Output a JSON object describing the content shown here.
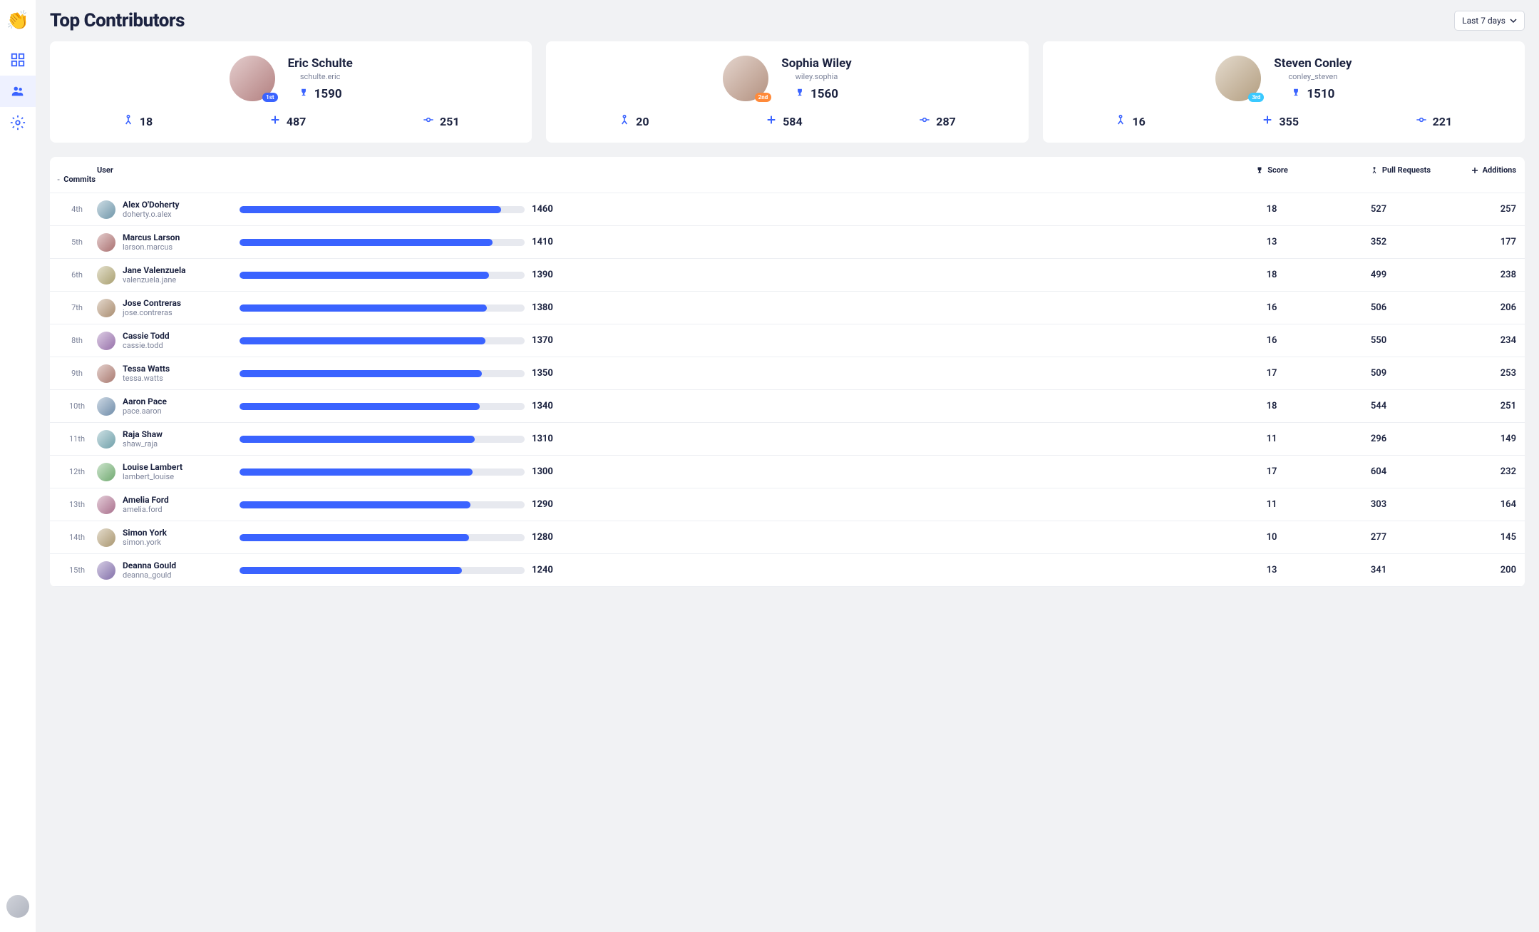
{
  "page": {
    "title": "Top Contributors"
  },
  "dropdown": {
    "label": "Last 7 days"
  },
  "colors": {
    "primary": "#3a63ff",
    "track": "#e7e9ef",
    "badge1": "#3a63ff",
    "badge2": "#ff8a3a",
    "badge3": "#3ac9ff"
  },
  "sidebar": {
    "logo": "👏"
  },
  "score_bar": {
    "max": 1590
  },
  "columns": {
    "user": "User",
    "score": "Score",
    "prs": "Pull Requests",
    "additions": "Additions",
    "commits": "Commits"
  },
  "top3": [
    {
      "rank": "1st",
      "name": "Eric Schulte",
      "username": "schulte.eric",
      "score": 1590,
      "prs": 18,
      "additions": 487,
      "commits": 251,
      "avatar_hue": 0
    },
    {
      "rank": "2nd",
      "name": "Sophia Wiley",
      "username": "wiley.sophia",
      "score": 1560,
      "prs": 20,
      "additions": 584,
      "commits": 287,
      "avatar_hue": 20
    },
    {
      "rank": "3rd",
      "name": "Steven Conley",
      "username": "conley_steven",
      "score": 1510,
      "prs": 16,
      "additions": 355,
      "commits": 221,
      "avatar_hue": 35
    }
  ],
  "rows": [
    {
      "rank": "4th",
      "name": "Alex O'Doherty",
      "username": "doherty.o.alex",
      "score": 1460,
      "prs": 18,
      "additions": 527,
      "commits": 257,
      "avatar_hue": 200
    },
    {
      "rank": "5th",
      "name": "Marcus Larson",
      "username": "larson.marcus",
      "score": 1410,
      "prs": 13,
      "additions": 352,
      "commits": 177,
      "avatar_hue": 0
    },
    {
      "rank": "6th",
      "name": "Jane Valenzuela",
      "username": "valenzuela.jane",
      "score": 1390,
      "prs": 18,
      "additions": 499,
      "commits": 238,
      "avatar_hue": 50
    },
    {
      "rank": "7th",
      "name": "Jose Contreras",
      "username": "jose.contreras",
      "score": 1380,
      "prs": 16,
      "additions": 506,
      "commits": 206,
      "avatar_hue": 30
    },
    {
      "rank": "8th",
      "name": "Cassie Todd",
      "username": "cassie.todd",
      "score": 1370,
      "prs": 16,
      "additions": 550,
      "commits": 234,
      "avatar_hue": 280
    },
    {
      "rank": "9th",
      "name": "Tessa Watts",
      "username": "tessa.watts",
      "score": 1350,
      "prs": 17,
      "additions": 509,
      "commits": 253,
      "avatar_hue": 10
    },
    {
      "rank": "10th",
      "name": "Aaron Pace",
      "username": "pace.aaron",
      "score": 1340,
      "prs": 18,
      "additions": 544,
      "commits": 251,
      "avatar_hue": 210
    },
    {
      "rank": "11th",
      "name": "Raja Shaw",
      "username": "shaw_raja",
      "score": 1310,
      "prs": 11,
      "additions": 296,
      "commits": 149,
      "avatar_hue": 190
    },
    {
      "rank": "12th",
      "name": "Louise Lambert",
      "username": "lambert_louise",
      "score": 1300,
      "prs": 17,
      "additions": 604,
      "commits": 232,
      "avatar_hue": 120
    },
    {
      "rank": "13th",
      "name": "Amelia Ford",
      "username": "amelia.ford",
      "score": 1290,
      "prs": 11,
      "additions": 303,
      "commits": 164,
      "avatar_hue": 330
    },
    {
      "rank": "14th",
      "name": "Simon York",
      "username": "simon.york",
      "score": 1280,
      "prs": 10,
      "additions": 277,
      "commits": 145,
      "avatar_hue": 40
    },
    {
      "rank": "15th",
      "name": "Deanna Gould",
      "username": "deanna_gould",
      "score": 1240,
      "prs": 13,
      "additions": 341,
      "commits": 200,
      "avatar_hue": 260
    }
  ]
}
